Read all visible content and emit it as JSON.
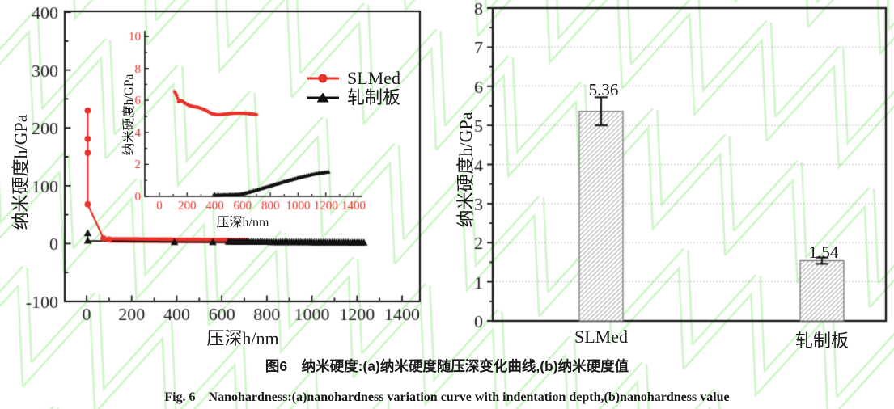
{
  "style": {
    "watermark_color": "#a9f19e",
    "axis_color": "#1a1a1a",
    "grid_color": "#b7b7b7",
    "hatch_color": "#8d8d8d",
    "bar_border_color": "#777777",
    "bar_fill_color": "#ffffff",
    "series_red": "#e8332a",
    "series_black": "#111111"
  },
  "figure": {
    "caption_cn": "图6　纳米硬度:(a)纳米硬度随压深变化曲线,(b)纳米硬度值",
    "caption_en": "Fig. 6　Nanohardness:(a)nanohardness variation curve with indentation depth,(b)nanohardness value"
  },
  "chart_data": [
    {
      "id": "curve-plot",
      "type": "line",
      "panel": "a",
      "xlabel": "压深h/nm",
      "ylabel": "纳米硬度h/GPa",
      "xlim": [
        -105,
        1480
      ],
      "ylim": [
        -100,
        400
      ],
      "xticks": [
        0,
        200,
        400,
        600,
        800,
        1000,
        1200,
        1400
      ],
      "yticks": [
        -100,
        0,
        100,
        200,
        300,
        400
      ],
      "legend_position": "upper-right",
      "series": [
        {
          "name": "SLMed",
          "color": "#e8332a",
          "marker": "circle",
          "points": [
            [
              5,
              230
            ],
            [
              5,
              181
            ],
            [
              5,
              157
            ],
            [
              5,
              68
            ],
            [
              75,
              9
            ],
            [
              100,
              7
            ]
          ],
          "dense_band": {
            "from": 110,
            "to": 710,
            "step": 12,
            "y_start": 6.5,
            "y_end": 5.0
          }
        },
        {
          "name": "轧制板",
          "color": "#111111",
          "marker": "triangle",
          "points": [
            [
              5,
              18
            ],
            [
              5,
              5
            ],
            [
              390,
              2.8
            ],
            [
              560,
              2.6
            ]
          ],
          "dense_band": {
            "from": 630,
            "to": 1230,
            "step": 10,
            "y_start": 3.2,
            "y_end": 2.0
          },
          "line_points": [
            [
              5,
              18
            ],
            [
              5,
              5
            ],
            [
              390,
              2.8
            ],
            [
              560,
              2.6
            ],
            [
              1230,
              1.8
            ]
          ]
        }
      ]
    },
    {
      "id": "inset-plot",
      "type": "line",
      "xlabel": "压深h/nm",
      "ylabel": "纳米硬度h/GPa",
      "xlim": [
        -105,
        1480
      ],
      "ylim": [
        0,
        10
      ],
      "xticks": [
        0,
        200,
        400,
        600,
        800,
        1000,
        1200,
        1400
      ],
      "yticks": [
        0,
        2,
        4,
        6,
        8,
        10
      ],
      "series": [
        {
          "name": "SLMed",
          "color": "#e8332a",
          "marker": "circle",
          "points": [
            [
              110,
              6.55
            ],
            [
              125,
              6.3
            ],
            [
              140,
              5.9
            ],
            [
              152,
              6.0
            ],
            [
              165,
              5.95
            ],
            [
              180,
              5.85
            ],
            [
              200,
              5.75
            ],
            [
              225,
              5.65
            ],
            [
              250,
              5.6
            ],
            [
              275,
              5.57
            ],
            [
              300,
              5.5
            ],
            [
              325,
              5.42
            ],
            [
              350,
              5.3
            ],
            [
              375,
              5.18
            ],
            [
              400,
              5.12
            ],
            [
              430,
              5.1
            ],
            [
              460,
              5.12
            ],
            [
              500,
              5.17
            ],
            [
              550,
              5.2
            ],
            [
              600,
              5.2
            ],
            [
              650,
              5.17
            ],
            [
              700,
              5.1
            ]
          ]
        },
        {
          "name": "轧制板",
          "color": "#111111",
          "marker": "triangle",
          "points": [
            [
              390,
              0.08
            ],
            [
              430,
              0.09
            ],
            [
              470,
              0.1
            ],
            [
              510,
              0.11
            ],
            [
              550,
              0.12
            ],
            [
              590,
              0.15
            ],
            [
              620,
              0.2
            ],
            [
              650,
              0.28
            ],
            [
              680,
              0.35
            ],
            [
              710,
              0.43
            ],
            [
              750,
              0.53
            ],
            [
              800,
              0.66
            ],
            [
              850,
              0.79
            ],
            [
              900,
              0.92
            ],
            [
              950,
              1.04
            ],
            [
              1000,
              1.16
            ],
            [
              1050,
              1.27
            ],
            [
              1100,
              1.37
            ],
            [
              1150,
              1.45
            ],
            [
              1220,
              1.53
            ]
          ]
        }
      ]
    },
    {
      "id": "bar-plot",
      "type": "bar",
      "panel": "b",
      "ylabel": "纳米硬度h/GPa",
      "ylim": [
        0,
        8
      ],
      "yticks": [
        0,
        1,
        2,
        3,
        4,
        5,
        6,
        7,
        8
      ],
      "grid": true,
      "categories": [
        "SLMed",
        "轧制板"
      ],
      "values": [
        5.36,
        1.54
      ],
      "errors": [
        0.36,
        0.08
      ],
      "value_labels": [
        "5.36",
        "1.54"
      ]
    }
  ]
}
